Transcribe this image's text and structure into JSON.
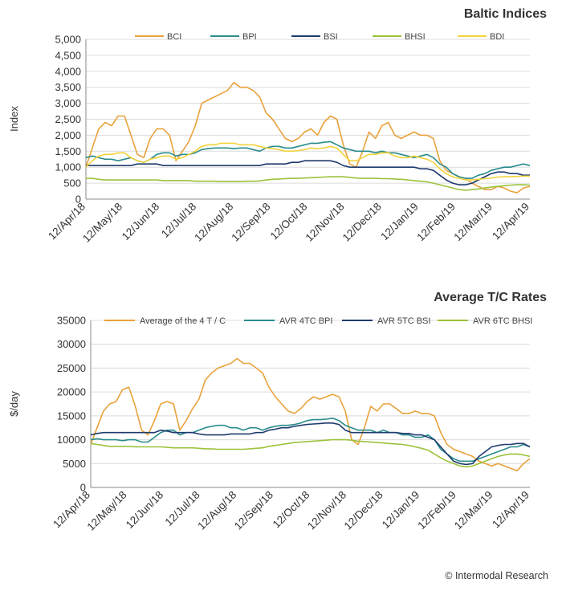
{
  "footer": "© Intermodal Research",
  "chart_data": [
    {
      "type": "line",
      "title": "Baltic Indices",
      "ylabel": "Index",
      "ylim": [
        0,
        5000
      ],
      "yticks": [
        "0",
        "500",
        "1,000",
        "1,500",
        "2,000",
        "2,500",
        "3,000",
        "3,500",
        "4,000",
        "4,500",
        "5,000"
      ],
      "ytick_values": [
        0,
        500,
        1000,
        1500,
        2000,
        2500,
        3000,
        3500,
        4000,
        4500,
        5000
      ],
      "xticks": [
        "12/Apr/18",
        "12/May/18",
        "12/Jun/18",
        "12/Jul/18",
        "12/Aug/18",
        "12/Sep/18",
        "12/Oct/18",
        "12/Nov/18",
        "12/Dec/18",
        "12/Jan/19",
        "12/Feb/19",
        "12/Mar/19",
        "12/Apr/19"
      ],
      "grid": true,
      "legend": "top",
      "series": [
        {
          "name": "BCI",
          "color": "#E9A23B",
          "values": [
            1000,
            1600,
            2200,
            2400,
            2300,
            2600,
            2600,
            2000,
            1400,
            1300,
            1900,
            2200,
            2200,
            2000,
            1200,
            1500,
            1800,
            2300,
            3000,
            3100,
            3200,
            3300,
            3400,
            3650,
            3500,
            3500,
            3400,
            3200,
            2700,
            2500,
            2200,
            1900,
            1800,
            1900,
            2100,
            2200,
            2000,
            2400,
            2600,
            2500,
            1700,
            1100,
            1000,
            1500,
            2100,
            1900,
            2300,
            2400,
            2000,
            1900,
            2000,
            2100,
            2000,
            2000,
            1900,
            1200,
            900,
            800,
            700,
            650,
            500,
            400,
            300,
            300,
            400,
            350,
            250,
            200,
            350,
            400
          ]
        },
        {
          "name": "BPI",
          "color": "#2A8C8C",
          "values": [
            1300,
            1350,
            1300,
            1250,
            1250,
            1200,
            1250,
            1300,
            1200,
            1150,
            1250,
            1400,
            1450,
            1450,
            1350,
            1400,
            1400,
            1450,
            1550,
            1580,
            1600,
            1600,
            1600,
            1580,
            1600,
            1600,
            1550,
            1500,
            1600,
            1650,
            1650,
            1600,
            1600,
            1650,
            1700,
            1750,
            1750,
            1780,
            1800,
            1700,
            1600,
            1550,
            1500,
            1500,
            1500,
            1450,
            1500,
            1450,
            1450,
            1400,
            1350,
            1300,
            1350,
            1400,
            1300,
            1100,
            1000,
            800,
            700,
            650,
            650,
            750,
            800,
            900,
            950,
            1000,
            1000,
            1050,
            1100,
            1050
          ]
        },
        {
          "name": "BSI",
          "color": "#1F3B6E",
          "values": [
            1050,
            1050,
            1050,
            1050,
            1050,
            1050,
            1050,
            1050,
            1100,
            1100,
            1100,
            1100,
            1050,
            1050,
            1050,
            1050,
            1050,
            1050,
            1050,
            1050,
            1050,
            1050,
            1050,
            1050,
            1050,
            1050,
            1050,
            1050,
            1100,
            1100,
            1100,
            1100,
            1150,
            1150,
            1200,
            1200,
            1200,
            1200,
            1200,
            1150,
            1050,
            1000,
            1000,
            1000,
            1000,
            1000,
            1000,
            1000,
            1000,
            1000,
            1000,
            1000,
            950,
            950,
            900,
            750,
            600,
            500,
            450,
            450,
            500,
            600,
            700,
            800,
            850,
            850,
            800,
            800,
            750,
            750
          ]
        },
        {
          "name": "BHSI",
          "color": "#9BC23B",
          "values": [
            650,
            650,
            620,
            600,
            600,
            600,
            600,
            600,
            600,
            600,
            600,
            600,
            580,
            580,
            580,
            580,
            580,
            560,
            560,
            560,
            560,
            550,
            550,
            550,
            550,
            560,
            560,
            570,
            600,
            620,
            630,
            640,
            650,
            650,
            660,
            670,
            680,
            690,
            700,
            700,
            700,
            680,
            660,
            650,
            650,
            650,
            640,
            640,
            630,
            620,
            600,
            580,
            560,
            540,
            500,
            450,
            400,
            350,
            300,
            280,
            300,
            320,
            350,
            380,
            400,
            420,
            440,
            450,
            450,
            440
          ]
        },
        {
          "name": "BDI",
          "color": "#F2D33B",
          "values": [
            1000,
            1200,
            1350,
            1400,
            1400,
            1450,
            1450,
            1300,
            1200,
            1150,
            1250,
            1300,
            1350,
            1350,
            1250,
            1300,
            1400,
            1500,
            1650,
            1700,
            1700,
            1750,
            1750,
            1750,
            1700,
            1700,
            1700,
            1650,
            1600,
            1580,
            1550,
            1500,
            1500,
            1520,
            1550,
            1600,
            1580,
            1600,
            1650,
            1600,
            1400,
            1200,
            1200,
            1300,
            1400,
            1400,
            1450,
            1450,
            1350,
            1300,
            1300,
            1350,
            1300,
            1250,
            1150,
            950,
            800,
            700,
            650,
            600,
            600,
            620,
            640,
            660,
            690,
            700,
            700,
            710,
            720,
            720
          ]
        }
      ]
    },
    {
      "type": "line",
      "title": "Average T/C Rates",
      "ylabel": "$/day",
      "ylim": [
        0,
        35000
      ],
      "yticks": [
        "0",
        "5000",
        "10000",
        "15000",
        "20000",
        "25000",
        "30000",
        "35000"
      ],
      "ytick_values": [
        0,
        5000,
        10000,
        15000,
        20000,
        25000,
        30000,
        35000
      ],
      "xticks": [
        "12/Apr/18",
        "12/May/18",
        "12/Jun/18",
        "12/Jul/18",
        "12/Aug/18",
        "12/Sep/18",
        "12/Oct/18",
        "12/Nov/18",
        "12/Dec/18",
        "12/Jan/19",
        "12/Feb/19",
        "12/Mar/19",
        "12/Apr/19"
      ],
      "grid": true,
      "legend": "top",
      "series": [
        {
          "name": "Average of the 4 T / C",
          "color": "#E9A23B",
          "values": [
            9000,
            12500,
            16000,
            17500,
            18000,
            20500,
            21000,
            17000,
            12000,
            11000,
            14000,
            17500,
            18000,
            17500,
            12000,
            14000,
            16500,
            18500,
            22500,
            24000,
            25000,
            25500,
            26000,
            27000,
            26000,
            26000,
            25000,
            24000,
            21000,
            19000,
            17500,
            16000,
            15500,
            16500,
            18000,
            19000,
            18500,
            19000,
            19500,
            19000,
            16000,
            10000,
            9000,
            12500,
            17000,
            16000,
            17500,
            17500,
            16500,
            15500,
            15500,
            16000,
            15500,
            15500,
            15000,
            11500,
            9000,
            8000,
            7500,
            7000,
            6500,
            5500,
            5000,
            4500,
            5000,
            4500,
            4000,
            3500,
            5000,
            6000
          ]
        },
        {
          "name": "AVR 4TC BPI",
          "color": "#2A8C8C",
          "values": [
            10000,
            10200,
            10000,
            10000,
            10000,
            9800,
            10000,
            10000,
            9500,
            9500,
            10500,
            11500,
            12000,
            12000,
            11000,
            11500,
            11500,
            12000,
            12500,
            12800,
            13000,
            13000,
            12500,
            12500,
            12000,
            12500,
            12500,
            12000,
            12500,
            12800,
            13000,
            13000,
            13200,
            13500,
            14000,
            14200,
            14200,
            14300,
            14500,
            14000,
            13000,
            12500,
            12000,
            12000,
            12000,
            11500,
            12000,
            11500,
            11500,
            11000,
            11000,
            10500,
            10500,
            11000,
            10000,
            8000,
            7000,
            6000,
            5500,
            5500,
            5500,
            6000,
            6500,
            7000,
            7500,
            8000,
            8500,
            8500,
            9000,
            8500
          ]
        },
        {
          "name": "AVR 5TC BSI",
          "color": "#1F3B6E",
          "values": [
            11000,
            11300,
            11500,
            11500,
            11500,
            11500,
            11500,
            11500,
            11500,
            11500,
            11500,
            12000,
            11800,
            11500,
            11500,
            11500,
            11500,
            11200,
            11000,
            11000,
            11000,
            11000,
            11200,
            11200,
            11200,
            11200,
            11500,
            11500,
            12000,
            12200,
            12500,
            12500,
            12800,
            13000,
            13200,
            13300,
            13400,
            13500,
            13500,
            13200,
            12000,
            11500,
            11500,
            11500,
            11500,
            11500,
            11500,
            11500,
            11500,
            11300,
            11300,
            11000,
            11000,
            10500,
            10000,
            8500,
            7000,
            5500,
            5000,
            4800,
            5000,
            6500,
            7500,
            8500,
            8800,
            9000,
            9000,
            9200,
            9200,
            8500
          ]
        },
        {
          "name": "AVR 6TC BHSI",
          "color": "#9BC23B",
          "values": [
            9200,
            9000,
            8800,
            8600,
            8600,
            8600,
            8600,
            8500,
            8500,
            8500,
            8500,
            8500,
            8400,
            8300,
            8300,
            8300,
            8300,
            8200,
            8100,
            8100,
            8000,
            8000,
            8000,
            8000,
            8000,
            8100,
            8200,
            8300,
            8600,
            8800,
            9000,
            9200,
            9400,
            9500,
            9600,
            9700,
            9800,
            9900,
            10000,
            10000,
            10000,
            9900,
            9700,
            9600,
            9500,
            9400,
            9300,
            9200,
            9100,
            9000,
            8800,
            8500,
            8200,
            7800,
            7000,
            6200,
            5500,
            5000,
            4500,
            4300,
            4500,
            5000,
            5500,
            6000,
            6500,
            6800,
            7000,
            7000,
            6800,
            6500
          ]
        }
      ]
    }
  ]
}
